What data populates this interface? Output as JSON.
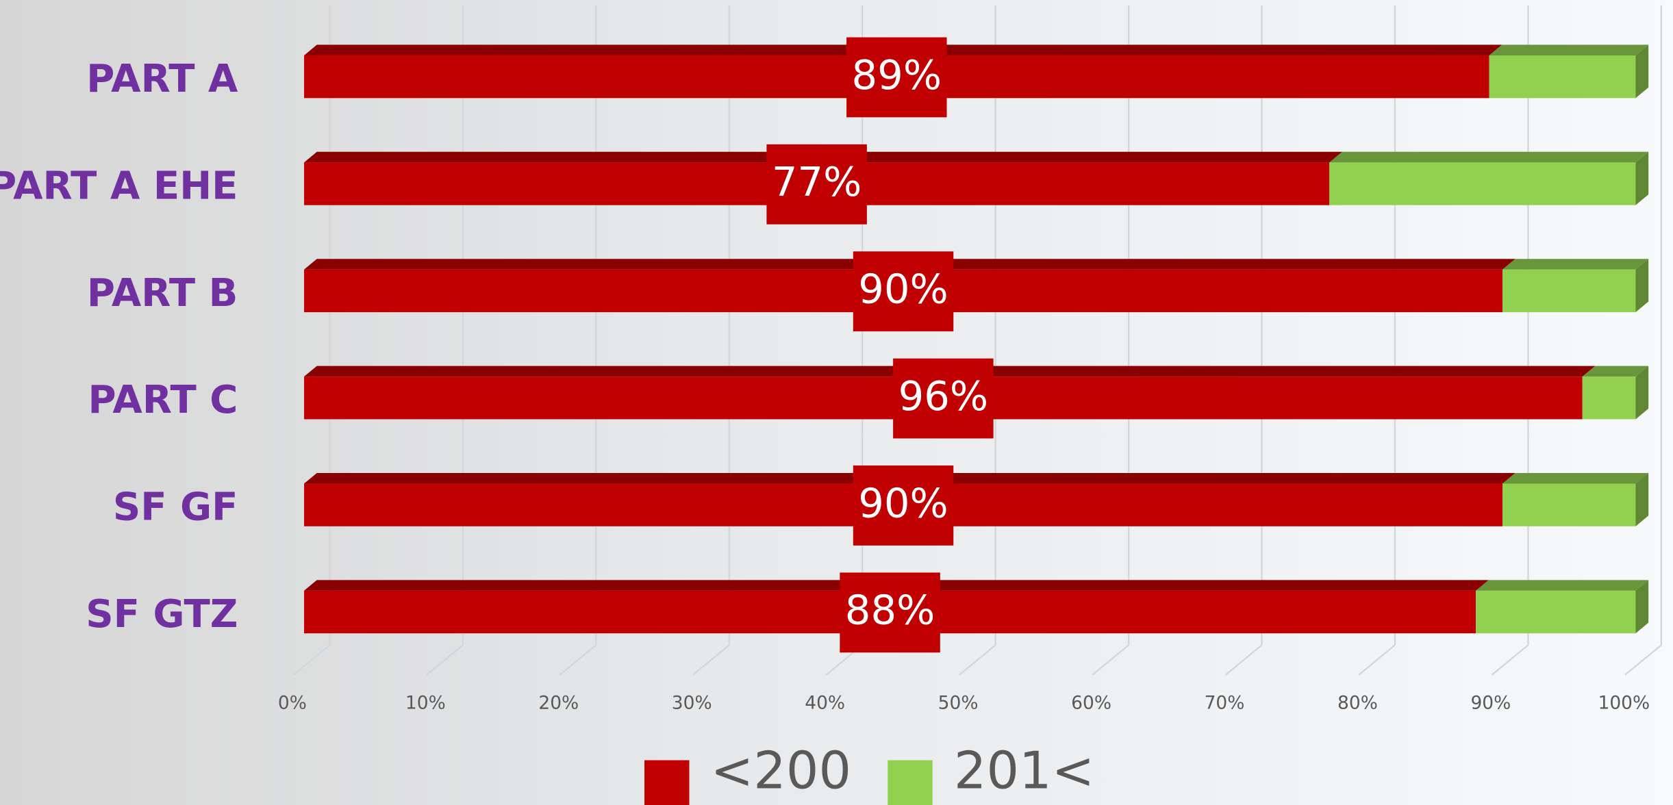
{
  "chart_data": {
    "type": "bar",
    "orientation": "horizontal",
    "stacked": "percent",
    "categories": [
      "PART A",
      "PART A EHE",
      "PART B",
      "PART C",
      "SF GF",
      "SF GTZ"
    ],
    "series": [
      {
        "name": "<200",
        "color": "#c00000",
        "values": [
          89,
          77,
          90,
          96,
          90,
          88
        ],
        "value_labels": [
          "89%",
          "77%",
          "90%",
          "96%",
          "90%",
          "88%"
        ]
      },
      {
        "name": "201<",
        "color": "#92d050",
        "values": [
          11,
          23,
          10,
          4,
          10,
          12
        ]
      }
    ],
    "xlim": [
      0,
      100
    ],
    "xticks": [
      {
        "value": 0,
        "label": "0%"
      },
      {
        "value": 10,
        "label": "10%"
      },
      {
        "value": 20,
        "label": "20%"
      },
      {
        "value": 30,
        "label": "30%"
      },
      {
        "value": 40,
        "label": "40%"
      },
      {
        "value": 50,
        "label": "50%"
      },
      {
        "value": 60,
        "label": "60%"
      },
      {
        "value": 70,
        "label": "70%"
      },
      {
        "value": 80,
        "label": "80%"
      },
      {
        "value": 90,
        "label": "90%"
      },
      {
        "value": 100,
        "label": "100%"
      }
    ],
    "grid": true,
    "legend": "bottom"
  }
}
